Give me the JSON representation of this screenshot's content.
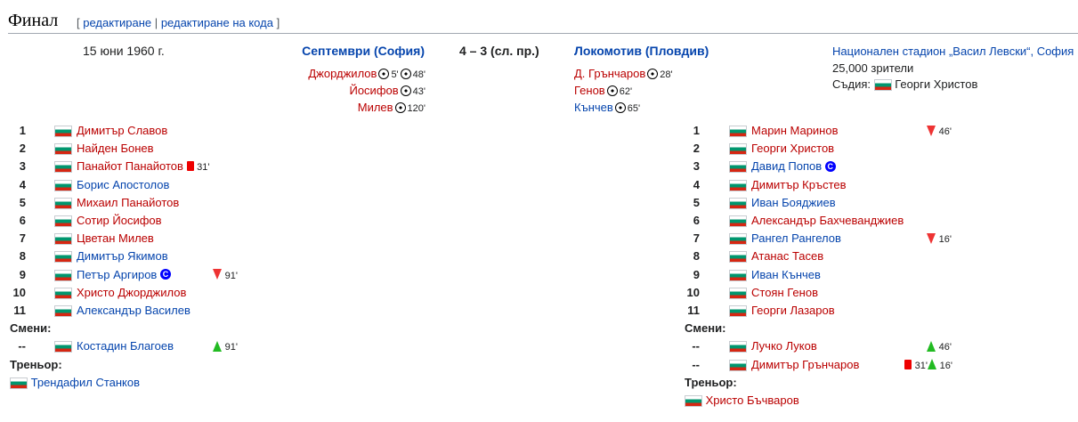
{
  "heading": "Финал",
  "edit": {
    "open": "[",
    "edit": "редактиране",
    "sep": "|",
    "edit_code": "редактиране на кода",
    "close": "]"
  },
  "match": {
    "date": "15 юни 1960 г.",
    "home": "Септември (София)",
    "score": "4 – 3 (сл. пр.)",
    "away": "Локомотив (Пловдив)",
    "stadium": "Национален стадион „Васил Левски“, София",
    "attendance": "25,000 зрители",
    "referee_label": "Съдия:",
    "referee": "Георги Христов"
  },
  "home_goals": [
    {
      "name": "Джорджилов",
      "m1": "5'",
      "m2": "48'"
    },
    {
      "name": "Йосифов",
      "m1": "43'"
    },
    {
      "name": "Милев",
      "m1": "120'"
    }
  ],
  "away_goals": [
    {
      "name": "Д. Грънчаров",
      "m1": "28'"
    },
    {
      "name": "Генов",
      "m1": "62'"
    },
    {
      "name": "Кънчев",
      "m1": "65'"
    }
  ],
  "home_players": [
    {
      "num": "1",
      "name": "Димитър Славов",
      "link": "red"
    },
    {
      "num": "2",
      "name": "Найден Бонев",
      "link": "red"
    },
    {
      "num": "3",
      "name": "Панайот Панайотов",
      "link": "red",
      "card": "31'"
    },
    {
      "num": "4",
      "name": "Борис Апостолов",
      "link": "blue"
    },
    {
      "num": "5",
      "name": "Михаил Панайотов",
      "link": "red"
    },
    {
      "num": "6",
      "name": "Сотир Йосифов",
      "link": "red"
    },
    {
      "num": "7",
      "name": "Цветан Милев",
      "link": "red"
    },
    {
      "num": "8",
      "name": "Димитър Якимов",
      "link": "blue"
    },
    {
      "num": "9",
      "name": "Петър Аргиров",
      "link": "blue",
      "captain": "C",
      "sub_out": "91'"
    },
    {
      "num": "10",
      "name": "Христо Джорджилов",
      "link": "red"
    },
    {
      "num": "11",
      "name": "Александър Василев",
      "link": "blue"
    }
  ],
  "home_subs_label": "Смени:",
  "home_subs": [
    {
      "num": "--",
      "name": "Костадин Благоев",
      "link": "blue",
      "sub_in": "91'"
    }
  ],
  "home_coach_label": "Треньор:",
  "home_coach": "Трендафил Станков",
  "away_players": [
    {
      "num": "1",
      "name": "Марин Маринов",
      "link": "red",
      "sub_out": "46'"
    },
    {
      "num": "2",
      "name": "Георги Христов",
      "link": "red"
    },
    {
      "num": "3",
      "name": "Давид Попов",
      "link": "blue",
      "captain": "C"
    },
    {
      "num": "4",
      "name": "Димитър Кръстев",
      "link": "red"
    },
    {
      "num": "5",
      "name": "Иван Бояджиев",
      "link": "blue"
    },
    {
      "num": "6",
      "name": "Александър Бахчеванджиев",
      "link": "red"
    },
    {
      "num": "7",
      "name": "Рангел Рангелов",
      "link": "blue",
      "sub_out": "16'"
    },
    {
      "num": "8",
      "name": "Атанас Тасев",
      "link": "red"
    },
    {
      "num": "9",
      "name": "Иван Кънчев",
      "link": "blue"
    },
    {
      "num": "10",
      "name": "Стоян Генов",
      "link": "red"
    },
    {
      "num": "11",
      "name": "Георги Лазаров",
      "link": "red"
    }
  ],
  "away_subs_label": "Смени:",
  "away_subs": [
    {
      "num": "--",
      "name": "Лучко Луков",
      "link": "red",
      "sub_in": "46'"
    },
    {
      "num": "--",
      "name": "Димитър Грънчаров",
      "link": "red",
      "card": "31'",
      "sub_in": "16'"
    }
  ],
  "away_coach_label": "Треньор:",
  "away_coach": "Христо Бъчваров"
}
